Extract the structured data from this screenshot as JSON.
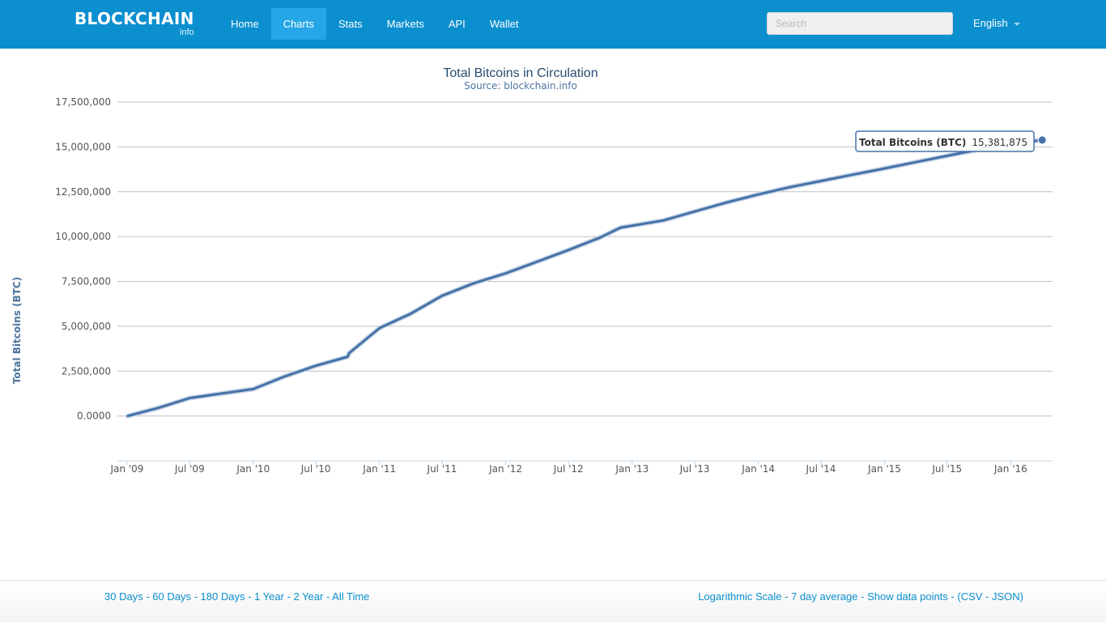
{
  "header": {
    "brand": "BLOCKCHAIN",
    "brand_sub": "info",
    "nav": [
      "Home",
      "Charts",
      "Stats",
      "Markets",
      "API",
      "Wallet"
    ],
    "active_nav": "Charts",
    "search_placeholder": "Search",
    "language": "English"
  },
  "footer": {
    "ranges": [
      "30 Days",
      "60 Days",
      "180 Days",
      "1 Year",
      "2 Year",
      "All Time"
    ],
    "options": [
      "Logarithmic Scale",
      "7 day average",
      "Show data points"
    ],
    "exports": [
      "CSV",
      "JSON"
    ]
  },
  "colors": {
    "navbar": "#0b8fcf",
    "active_nav": "#25a6e6",
    "series": "#4572a7",
    "link": "#0b8fcf"
  },
  "chart_data": {
    "type": "line",
    "title": "Total Bitcoins in Circulation",
    "subtitle": "Source: blockchain.info",
    "ylabel": "Total Bitcoins (BTC)",
    "xlabel": "",
    "ylim": [
      -2500000,
      17500000
    ],
    "yticks": [
      0,
      2500000,
      5000000,
      7500000,
      10000000,
      12500000,
      15000000,
      17500000
    ],
    "ytick_labels": [
      "0.0000",
      "2,500,000",
      "5,000,000",
      "7,500,000",
      "10,000,000",
      "12,500,000",
      "15,000,000",
      "17,500,000"
    ],
    "xlim": [
      "2009-01-01",
      "2016-05-01"
    ],
    "xticks": [
      "2009-01-01",
      "2009-07-01",
      "2010-01-01",
      "2010-07-01",
      "2011-01-01",
      "2011-07-01",
      "2012-01-01",
      "2012-07-01",
      "2013-01-01",
      "2013-07-01",
      "2014-01-01",
      "2014-07-01",
      "2015-01-01",
      "2015-07-01",
      "2016-01-01"
    ],
    "xtick_labels": [
      "Jan '09",
      "Jul '09",
      "Jan '10",
      "Jul '10",
      "Jan '11",
      "Jul '11",
      "Jan '12",
      "Jul '12",
      "Jan '13",
      "Jul '13",
      "Jan '14",
      "Jul '14",
      "Jan '15",
      "Jul '15",
      "Jan '16"
    ],
    "grid": true,
    "legend": "none",
    "series": [
      {
        "name": "Total Bitcoins (BTC)",
        "x": [
          "2009-01-03",
          "2009-04-01",
          "2009-07-01",
          "2009-10-01",
          "2010-01-01",
          "2010-04-01",
          "2010-07-01",
          "2010-10-01",
          "2010-10-05",
          "2011-01-01",
          "2011-04-01",
          "2011-07-01",
          "2011-10-01",
          "2012-01-01",
          "2012-04-01",
          "2012-07-01",
          "2012-10-01",
          "2012-11-28",
          "2013-04-01",
          "2013-07-01",
          "2013-10-01",
          "2014-01-01",
          "2014-04-01",
          "2014-07-01",
          "2014-10-01",
          "2015-01-01",
          "2015-04-01",
          "2015-07-01",
          "2015-10-01",
          "2016-01-01",
          "2016-04-01"
        ],
        "values": [
          50,
          450000,
          1000000,
          1250000,
          1500000,
          2200000,
          2800000,
          3300000,
          3500000,
          4900000,
          5700000,
          6700000,
          7400000,
          7950000,
          8600000,
          9250000,
          9950000,
          10500000,
          10900000,
          11400000,
          11900000,
          12350000,
          12750000,
          13100000,
          13450000,
          13800000,
          14150000,
          14500000,
          14850000,
          15150000,
          15381875
        ]
      }
    ],
    "tooltip": {
      "label": "Total Bitcoins (BTC)",
      "value": "15,381,875"
    }
  }
}
